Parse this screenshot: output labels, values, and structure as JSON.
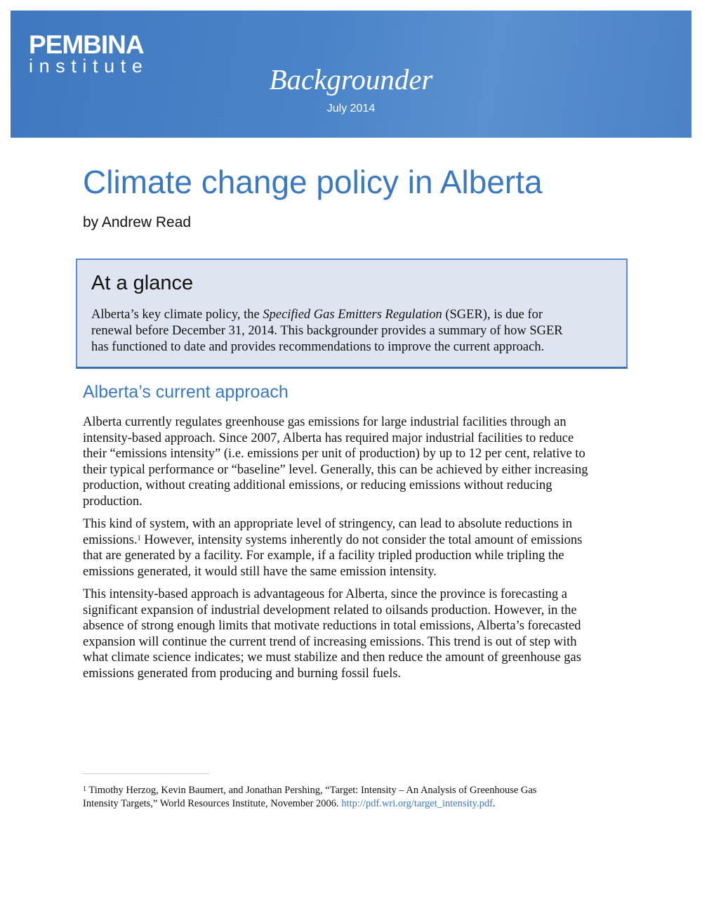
{
  "header": {
    "logo_line1": "PEMBINA",
    "logo_line2": "institute",
    "doc_type": "Backgrounder",
    "date": "July 2014",
    "banner_color": "#4a84c8"
  },
  "title": "Climate change policy in Alberta",
  "byline": "by Andrew Read",
  "glance": {
    "heading": "At a glance",
    "l1a": "Alberta’s key climate policy, the ",
    "l1b": "Specified Gas Emitters Regulation",
    "l1c": " (SGER), is due for",
    "l2": "renewal before December 31, 2014. This backgrounder provides a summary of how SGER",
    "l3": "has functioned to date and provides recommendations to improve the current approach."
  },
  "section_heading": "Alberta’s current approach",
  "paragraphs": {
    "p1": [
      "Alberta currently regulates greenhouse gas emissions for large industrial facilities through an",
      "intensity-based approach. Since 2007, Alberta has required major industrial facilities to reduce",
      "their “emissions intensity” (i.e. emissions per unit of production) by up to 12 per cent, relative to",
      "their typical performance or “baseline” level. Generally, this can be achieved by either increasing",
      "production, without creating additional emissions, or reducing emissions without reducing",
      "production."
    ],
    "p2": {
      "l1": "This kind of system, with an appropriate level of stringency, can lead to absolute reductions in",
      "l2a": "emissions.",
      "l2sup": "1",
      "l2b": " However, intensity systems inherently do not consider the total amount of emissions",
      "l3": "that are generated by a facility. For example, if a facility tripled production while tripling the",
      "l4": "emissions generated, it would still have the same emission intensity."
    },
    "p3": [
      "This intensity-based approach is advantageous for Alberta, since the province is forecasting a",
      "significant expansion of industrial development related to oilsands production. However, in the",
      "absence of strong enough limits that motivate reductions in total emissions, Alberta’s forecasted",
      "expansion will continue the current trend of increasing emissions. This trend is out of step with",
      "what climate science indicates; we must stabilize and then reduce the amount of greenhouse gas",
      "emissions generated from producing and burning fossil fuels."
    ]
  },
  "footnote": {
    "mark": "1",
    "l1": " Timothy Herzog, Kevin Baumert, and Jonathan Pershing, “Target: Intensity – An Analysis of Greenhouse Gas",
    "l2": "Intensity Targets,” World Resources Institute, November 2006. ",
    "link": "http://pdf.wri.org/target_intensity.pdf",
    "end": "."
  }
}
